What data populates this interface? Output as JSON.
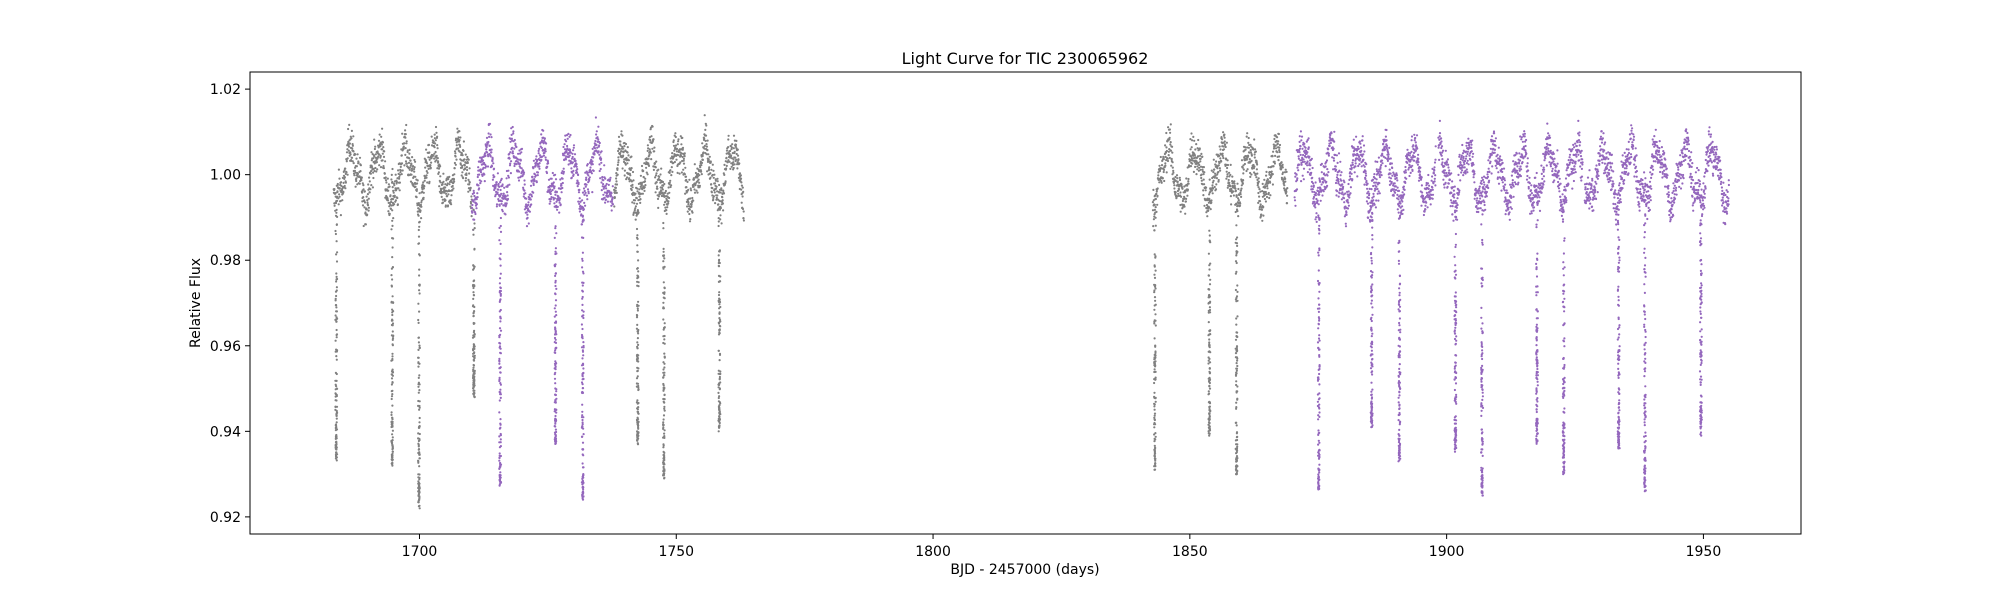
{
  "chart_data": {
    "type": "scatter",
    "title": "Light Curve for TIC 230065962",
    "xlabel": "BJD - 2457000 (days)",
    "ylabel": "Relative Flux",
    "xlim": [
      1667,
      1969
    ],
    "ylim": [
      0.916,
      1.024
    ],
    "xticks": [
      1700,
      1750,
      1800,
      1850,
      1900,
      1950
    ],
    "yticks": [
      0.92,
      0.94,
      0.96,
      0.98,
      1.0,
      1.02
    ],
    "ytick_labels": [
      "0.92",
      "0.94",
      "0.96",
      "0.98",
      "1.00",
      "1.02"
    ],
    "grid": false,
    "colors": {
      "gray": "#808080",
      "purple": "#9467bd"
    },
    "segments": [
      {
        "start": 1683.3,
        "end": 1710.2,
        "color": "gray"
      },
      {
        "start": 1710.2,
        "end": 1737.7,
        "color": "purple"
      },
      {
        "start": 1737.9,
        "end": 1763.2,
        "color": "gray"
      },
      {
        "start": 1842.8,
        "end": 1869.0,
        "color": "gray"
      },
      {
        "start": 1870.4,
        "end": 1897.9,
        "color": "purple"
      },
      {
        "start": 1898.4,
        "end": 1926.5,
        "color": "purple"
      },
      {
        "start": 1926.9,
        "end": 1955.0,
        "color": "purple"
      }
    ],
    "dips": [
      {
        "t": 1683.8,
        "min": 0.933
      },
      {
        "t": 1694.7,
        "min": 0.932
      },
      {
        "t": 1699.9,
        "min": 0.922
      },
      {
        "t": 1710.6,
        "min": 0.948
      },
      {
        "t": 1715.7,
        "min": 0.927
      },
      {
        "t": 1726.5,
        "min": 0.937
      },
      {
        "t": 1731.8,
        "min": 0.924
      },
      {
        "t": 1742.5,
        "min": 0.937
      },
      {
        "t": 1747.6,
        "min": 0.929
      },
      {
        "t": 1758.4,
        "min": 0.94
      },
      {
        "t": 1843.2,
        "min": 0.931
      },
      {
        "t": 1853.8,
        "min": 0.939
      },
      {
        "t": 1859.1,
        "min": 0.93
      },
      {
        "t": 1875.1,
        "min": 0.926
      },
      {
        "t": 1885.4,
        "min": 0.941
      },
      {
        "t": 1890.8,
        "min": 0.933
      },
      {
        "t": 1901.7,
        "min": 0.935
      },
      {
        "t": 1906.9,
        "min": 0.925
      },
      {
        "t": 1917.6,
        "min": 0.937
      },
      {
        "t": 1922.8,
        "min": 0.93
      },
      {
        "t": 1933.5,
        "min": 0.936
      },
      {
        "t": 1938.6,
        "min": 0.926
      },
      {
        "t": 1949.5,
        "min": 0.939
      }
    ],
    "baseline": {
      "mean": 1.0,
      "scatter": 0.004,
      "variation_amplitude": 0.006,
      "variation_period_days": 5.3
    }
  }
}
